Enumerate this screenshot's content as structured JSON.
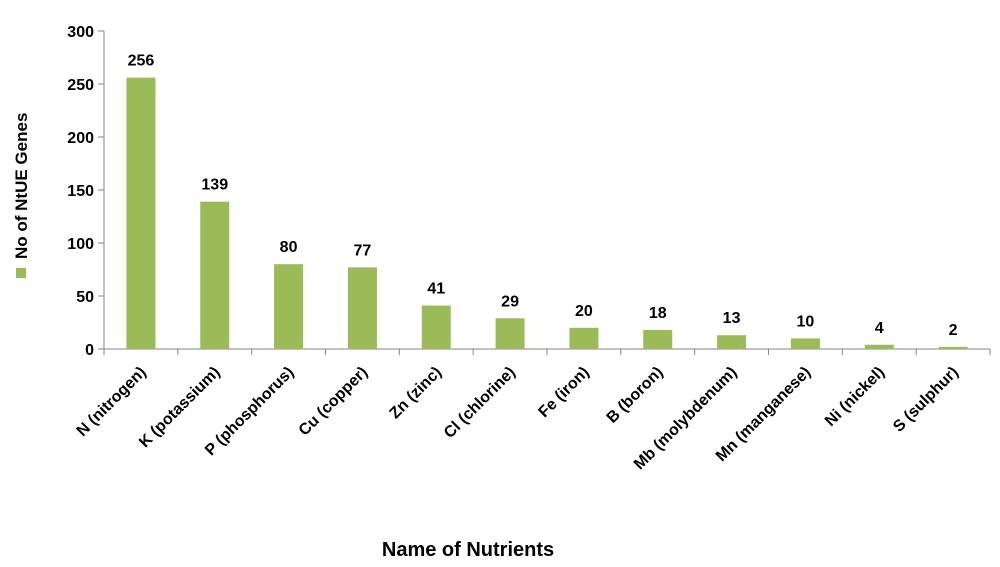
{
  "chart_data": {
    "type": "bar",
    "categories": [
      "N (nitrogen)",
      "K (potassium)",
      "P (phosphorus)",
      "Cu (copper)",
      "Zn (zinc)",
      "Cl (chlorine)",
      "Fe (iron)",
      "B (boron)",
      "Mb (molybdenum)",
      "Mn (manganese)",
      "Ni (nickel)",
      "S (sulphur)"
    ],
    "series": [
      {
        "name": "No of NtUE Genes",
        "values": [
          256,
          139,
          80,
          77,
          41,
          29,
          20,
          18,
          13,
          10,
          4,
          2
        ]
      }
    ],
    "data_labels": [
      "256",
      "139",
      "80",
      "77",
      "41",
      "29",
      "20",
      "18",
      "13",
      "10",
      "4",
      "2"
    ],
    "title": "",
    "xlabel": "Name of Nutrients",
    "ylabel": "",
    "ylim": [
      0,
      300
    ],
    "yticks": [
      "0",
      "50",
      "100",
      "150",
      "200",
      "250",
      "300"
    ],
    "legend": {
      "label": "No of NtUE Genes",
      "position": "left, rotated vertical"
    },
    "grid": false,
    "colors": {
      "bar": "#9BBB59",
      "axis": "#868686"
    }
  }
}
